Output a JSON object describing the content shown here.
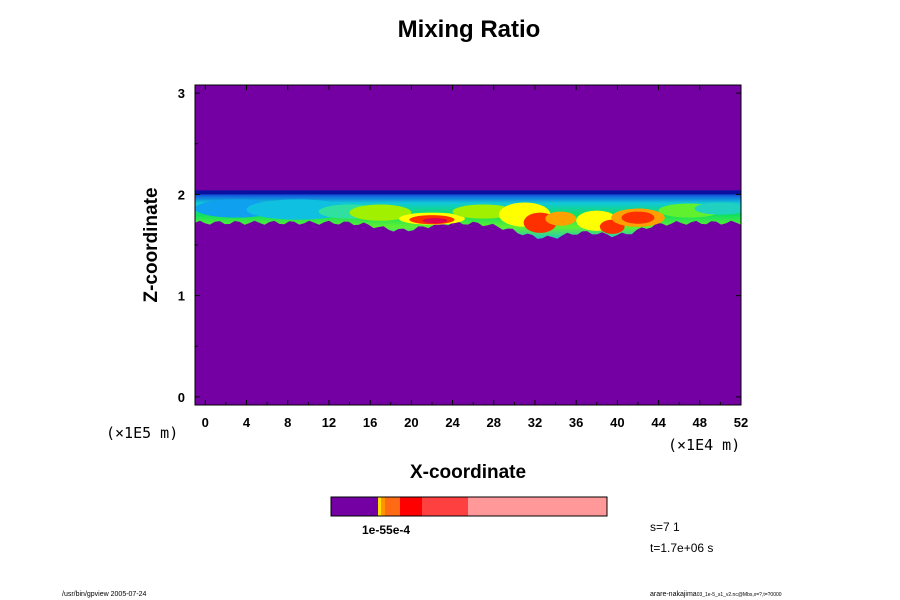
{
  "chart_data": {
    "type": "heatmap",
    "title": "Mixing Ratio",
    "xlabel": "X-coordinate",
    "ylabel": "Z-coordinate",
    "x_scale_label": "(×1E4 m)",
    "y_scale_label": "(×1E5 m)",
    "xlim": [
      -1,
      52
    ],
    "ylim": [
      -0.08,
      3.08
    ],
    "x_ticks": [
      "0",
      "4",
      "8",
      "12",
      "16",
      "20",
      "24",
      "28",
      "32",
      "36",
      "40",
      "44",
      "48",
      "52"
    ],
    "y_ticks": [
      "0",
      "1",
      "2",
      "3"
    ],
    "background_color": "#7400a4",
    "cloud_layer": {
      "z_top": 2.02,
      "z_bottom_min": 1.51,
      "z_bottom_max": 1.72,
      "color_order": [
        "#1430c8",
        "#1e90ff",
        "#00d0c0",
        "#00e040",
        "#a0f000",
        "#ffff00",
        "#ffa000",
        "#ff3000",
        "#e00050"
      ]
    },
    "colorbar": {
      "colors": [
        "#7400a4",
        "#ffe000",
        "#ff9400",
        "#ff6b14",
        "#ff0000",
        "#ff4040",
        "#ff9898"
      ],
      "label": "1e-55e-4"
    },
    "annotations": {
      "step": "s=7 1",
      "time": "t=1.7e+06 s"
    }
  },
  "footer": {
    "left": "/usr/bin/gpview 2005-07-24",
    "right_main": "arare-nakajima",
    "right_small": "03_1e-5_s1_v2.nc@Mbs,x=?,t=?0000"
  }
}
